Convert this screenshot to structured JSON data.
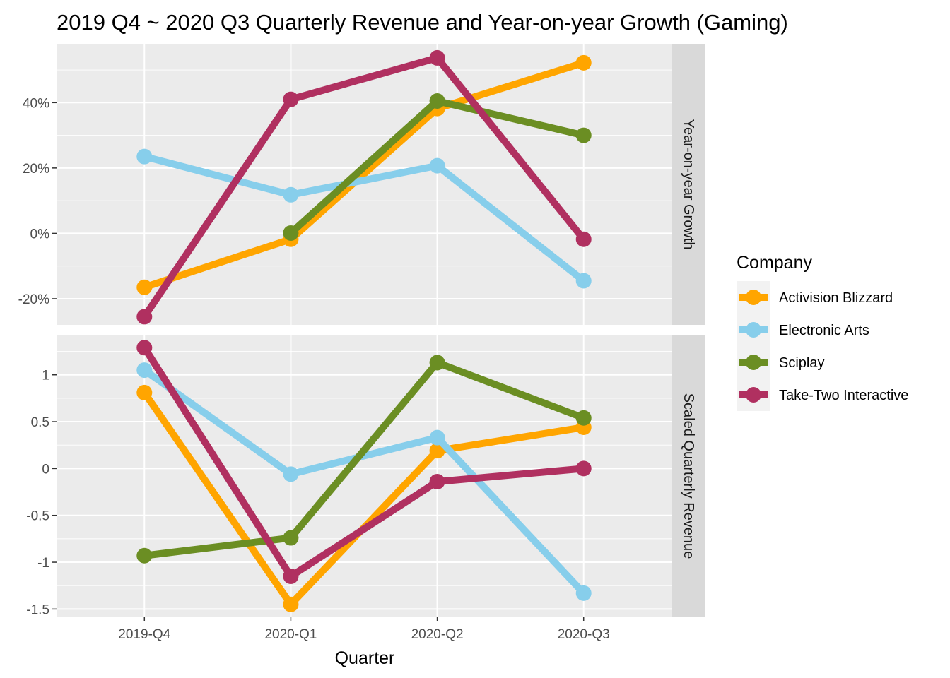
{
  "chart_data": {
    "type": "line",
    "title": "2019 Q4 ~ 2020 Q3 Quarterly Revenue and Year-on-year Growth (Gaming)",
    "xlabel": "Quarter",
    "ylabel": "",
    "categories": [
      "2019-Q4",
      "2020-Q1",
      "2020-Q2",
      "2020-Q3"
    ],
    "legend": {
      "title": "Company",
      "position": "right"
    },
    "grid": true,
    "series_colors": {
      "Activision Blizzard": "#FFA500",
      "Electronic Arts": "#87CEEB",
      "Sciplay": "#6B8E23",
      "Take-Two Interactive": "#B03060"
    },
    "panels": [
      {
        "strip_label": "Year-on-year Growth",
        "ylim": [
          -28,
          58
        ],
        "y_ticks": [
          -20,
          0,
          20,
          40
        ],
        "y_tick_labels": [
          "-20%",
          "0%",
          "20%",
          "40%"
        ],
        "series": [
          {
            "name": "Activision Blizzard",
            "values": [
              -16.5,
              -1.8,
              38.2,
              52.2
            ]
          },
          {
            "name": "Electronic Arts",
            "values": [
              23.5,
              11.8,
              20.7,
              -14.5
            ]
          },
          {
            "name": "Sciplay",
            "values": [
              null,
              0.1,
              40.5,
              30.0
            ]
          },
          {
            "name": "Take-Two Interactive",
            "values": [
              -25.5,
              41.0,
              53.7,
              -1.8
            ]
          }
        ]
      },
      {
        "strip_label": "Scaled Quarterly Revenue",
        "ylim": [
          -1.58,
          1.42
        ],
        "y_ticks": [
          -1.5,
          -1,
          -0.5,
          0,
          0.5,
          1
        ],
        "y_tick_labels": [
          "-1.5",
          "-1",
          "-0.5",
          "0",
          "0.5",
          "1"
        ],
        "series": [
          {
            "name": "Activision Blizzard",
            "values": [
              0.81,
              -1.45,
              0.19,
              0.44
            ]
          },
          {
            "name": "Electronic Arts",
            "values": [
              1.05,
              -0.06,
              0.33,
              -1.33
            ]
          },
          {
            "name": "Sciplay",
            "values": [
              -0.93,
              -0.74,
              1.13,
              0.54
            ]
          },
          {
            "name": "Take-Two Interactive",
            "values": [
              1.29,
              -1.15,
              -0.14,
              0.0
            ]
          }
        ]
      }
    ]
  }
}
